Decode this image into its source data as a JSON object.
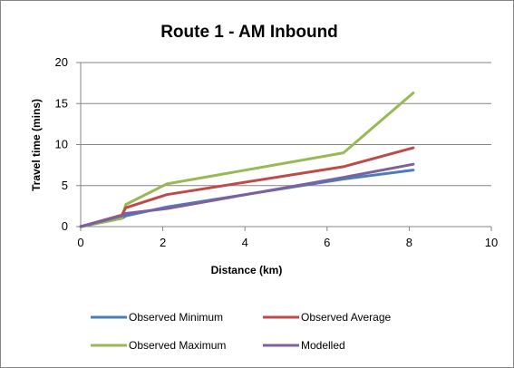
{
  "chart_data": {
    "type": "line",
    "title": "Route 1 - AM Inbound",
    "xlabel": "Distance  (km)",
    "ylabel": "Travel time (mins)",
    "xlim": [
      0,
      10
    ],
    "ylim": [
      0,
      20
    ],
    "xticks": [
      "0",
      "2",
      "4",
      "6",
      "8",
      "10"
    ],
    "yticks": [
      "0",
      "5",
      "10",
      "15",
      "20"
    ],
    "grid": "horizontal",
    "legend_position": "bottom",
    "series": [
      {
        "name": "Observed Minimum",
        "color": "#4A7EBB",
        "points": [
          [
            0,
            0
          ],
          [
            1.0,
            1.0
          ],
          [
            1.1,
            1.3
          ],
          [
            2.1,
            2.4
          ],
          [
            6.4,
            5.8
          ],
          [
            8.1,
            6.9
          ]
        ]
      },
      {
        "name": "Observed Average",
        "color": "#BE4B48",
        "points": [
          [
            0,
            0
          ],
          [
            1.0,
            1.4
          ],
          [
            1.1,
            2.3
          ],
          [
            2.1,
            3.9
          ],
          [
            6.4,
            7.3
          ],
          [
            8.1,
            9.6
          ]
        ]
      },
      {
        "name": "Observed Maximum",
        "color": "#98B954",
        "points": [
          [
            0,
            0
          ],
          [
            1.0,
            1.0
          ],
          [
            1.1,
            2.7
          ],
          [
            2.1,
            5.2
          ],
          [
            6.4,
            9.0
          ],
          [
            8.1,
            16.3
          ]
        ]
      },
      {
        "name": "Modelled",
        "color": "#7D60A0",
        "points": [
          [
            0,
            0
          ],
          [
            1.0,
            1.3
          ],
          [
            1.1,
            1.6
          ],
          [
            2.1,
            2.2
          ],
          [
            6.4,
            6.0
          ],
          [
            8.1,
            7.6
          ]
        ]
      }
    ]
  }
}
